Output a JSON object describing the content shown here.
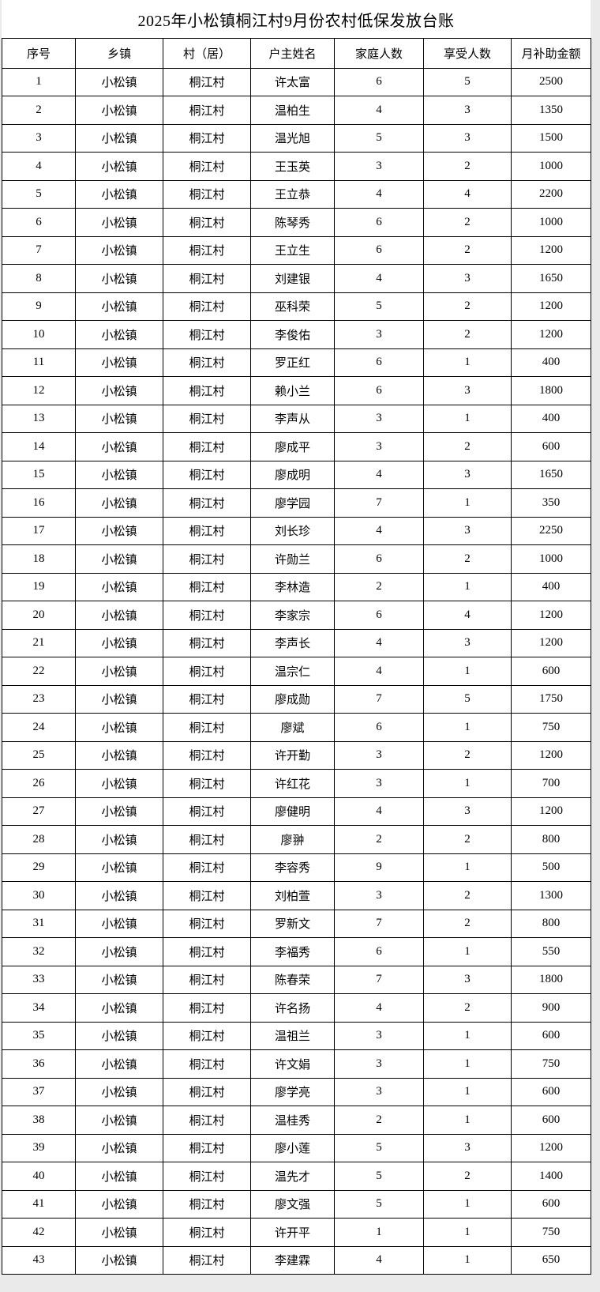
{
  "page": {
    "title": "2025年小松镇桐江村9月份农村低保发放台账"
  },
  "colors": {
    "page_background": "#eaeaea",
    "cell_background": "#ffffff",
    "border": "#000000",
    "text": "#000000"
  },
  "table": {
    "headers": [
      "序号",
      "乡镇",
      "村（居）",
      "户主姓名",
      "家庭人数",
      "享受人数",
      "月补助金额"
    ],
    "rows": [
      [
        1,
        "小松镇",
        "桐江村",
        "许太富",
        6,
        5,
        2500
      ],
      [
        2,
        "小松镇",
        "桐江村",
        "温柏生",
        4,
        3,
        1350
      ],
      [
        3,
        "小松镇",
        "桐江村",
        "温光旭",
        5,
        3,
        1500
      ],
      [
        4,
        "小松镇",
        "桐江村",
        "王玉英",
        3,
        2,
        1000
      ],
      [
        5,
        "小松镇",
        "桐江村",
        "王立恭",
        4,
        4,
        2200
      ],
      [
        6,
        "小松镇",
        "桐江村",
        "陈琴秀",
        6,
        2,
        1000
      ],
      [
        7,
        "小松镇",
        "桐江村",
        "王立生",
        6,
        2,
        1200
      ],
      [
        8,
        "小松镇",
        "桐江村",
        "刘建银",
        4,
        3,
        1650
      ],
      [
        9,
        "小松镇",
        "桐江村",
        "巫科荣",
        5,
        2,
        1200
      ],
      [
        10,
        "小松镇",
        "桐江村",
        "李俊佑",
        3,
        2,
        1200
      ],
      [
        11,
        "小松镇",
        "桐江村",
        "罗正红",
        6,
        1,
        400
      ],
      [
        12,
        "小松镇",
        "桐江村",
        "赖小兰",
        6,
        3,
        1800
      ],
      [
        13,
        "小松镇",
        "桐江村",
        "李声从",
        3,
        1,
        400
      ],
      [
        14,
        "小松镇",
        "桐江村",
        "廖成平",
        3,
        2,
        600
      ],
      [
        15,
        "小松镇",
        "桐江村",
        "廖成明",
        4,
        3,
        1650
      ],
      [
        16,
        "小松镇",
        "桐江村",
        "廖学园",
        7,
        1,
        350
      ],
      [
        17,
        "小松镇",
        "桐江村",
        "刘长珍",
        4,
        3,
        2250
      ],
      [
        18,
        "小松镇",
        "桐江村",
        "许勋兰",
        6,
        2,
        1000
      ],
      [
        19,
        "小松镇",
        "桐江村",
        "李林造",
        2,
        1,
        400
      ],
      [
        20,
        "小松镇",
        "桐江村",
        "李家宗",
        6,
        4,
        1200
      ],
      [
        21,
        "小松镇",
        "桐江村",
        "李声长",
        4,
        3,
        1200
      ],
      [
        22,
        "小松镇",
        "桐江村",
        "温宗仁",
        4,
        1,
        600
      ],
      [
        23,
        "小松镇",
        "桐江村",
        "廖成勋",
        7,
        5,
        1750
      ],
      [
        24,
        "小松镇",
        "桐江村",
        "廖斌",
        6,
        1,
        750
      ],
      [
        25,
        "小松镇",
        "桐江村",
        "许开勤",
        3,
        2,
        1200
      ],
      [
        26,
        "小松镇",
        "桐江村",
        "许红花",
        3,
        1,
        700
      ],
      [
        27,
        "小松镇",
        "桐江村",
        "廖健明",
        4,
        3,
        1200
      ],
      [
        28,
        "小松镇",
        "桐江村",
        "廖翀",
        2,
        2,
        800
      ],
      [
        29,
        "小松镇",
        "桐江村",
        "李容秀",
        9,
        1,
        500
      ],
      [
        30,
        "小松镇",
        "桐江村",
        "刘柏萱",
        3,
        2,
        1300
      ],
      [
        31,
        "小松镇",
        "桐江村",
        "罗新文",
        7,
        2,
        800
      ],
      [
        32,
        "小松镇",
        "桐江村",
        "李福秀",
        6,
        1,
        550
      ],
      [
        33,
        "小松镇",
        "桐江村",
        "陈春荣",
        7,
        3,
        1800
      ],
      [
        34,
        "小松镇",
        "桐江村",
        "许名扬",
        4,
        2,
        900
      ],
      [
        35,
        "小松镇",
        "桐江村",
        "温祖兰",
        3,
        1,
        600
      ],
      [
        36,
        "小松镇",
        "桐江村",
        "许文娟",
        3,
        1,
        750
      ],
      [
        37,
        "小松镇",
        "桐江村",
        "廖学亮",
        3,
        1,
        600
      ],
      [
        38,
        "小松镇",
        "桐江村",
        "温桂秀",
        2,
        1,
        600
      ],
      [
        39,
        "小松镇",
        "桐江村",
        "廖小莲",
        5,
        3,
        1200
      ],
      [
        40,
        "小松镇",
        "桐江村",
        "温先才",
        5,
        2,
        1400
      ],
      [
        41,
        "小松镇",
        "桐江村",
        "廖文强",
        5,
        1,
        600
      ],
      [
        42,
        "小松镇",
        "桐江村",
        "许开平",
        1,
        1,
        750
      ],
      [
        43,
        "小松镇",
        "桐江村",
        "李建霖",
        4,
        1,
        650
      ]
    ]
  }
}
